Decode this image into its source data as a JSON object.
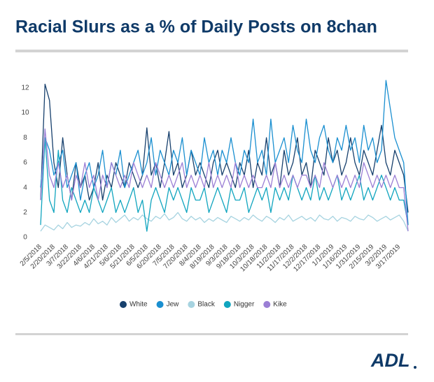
{
  "chart_data": {
    "type": "line",
    "title": "Racial Slurs as a % of Daily Posts on 8chan",
    "categories": [
      "2/5/2018",
      null,
      null,
      "2/20/2018",
      null,
      null,
      "3/7/2018",
      null,
      null,
      "3/22/2018",
      null,
      null,
      "4/6/2018",
      null,
      null,
      "4/21/2018",
      null,
      null,
      "5/6/2018",
      null,
      null,
      "5/21/2018",
      null,
      null,
      "6/5/2018",
      null,
      null,
      "6/20/2018",
      null,
      null,
      "7/5/2018",
      null,
      null,
      "7/20/2018",
      null,
      null,
      "8/4/2018",
      null,
      null,
      "8/19/2018",
      null,
      null,
      "9/3/2018",
      null,
      null,
      "9/18/2018",
      null,
      null,
      "10/3/2018",
      null,
      null,
      "10/18/2018",
      null,
      null,
      "11/2/2018",
      null,
      null,
      "11/17/2018",
      null,
      null,
      "12/2/2018",
      null,
      null,
      "12/17/2018",
      null,
      null,
      "1/1/2019",
      null,
      null,
      "1/16/2019",
      null,
      null,
      "1/31/2019",
      null,
      null,
      "2/15/2019",
      null,
      null,
      "3/2/2019",
      null,
      null,
      "3/17/2019",
      null,
      null
    ],
    "series": [
      {
        "name": "White",
        "color": "#17406d",
        "values": [
          3,
          12.3,
          11,
          6,
          4,
          8,
          5,
          3,
          6,
          4,
          5,
          3,
          4,
          6,
          3,
          5,
          4,
          6,
          5,
          4,
          6,
          5,
          4,
          5,
          8.8,
          5,
          6,
          4,
          6,
          8.5,
          5,
          6,
          4,
          5,
          7,
          5,
          6,
          5,
          4,
          6,
          7,
          5,
          6,
          5,
          4,
          6,
          5,
          7,
          4,
          6,
          5,
          8,
          5,
          6,
          4,
          7,
          5,
          6,
          8,
          5,
          6,
          4,
          7,
          6,
          5,
          8,
          6,
          7,
          5,
          6,
          8,
          6,
          5,
          7,
          6,
          5,
          7,
          9,
          6,
          5,
          7,
          6,
          5,
          2
        ]
      },
      {
        "name": "Jew",
        "color": "#1a8fd0",
        "values": [
          4,
          8,
          7,
          5,
          6,
          7,
          4,
          5,
          6,
          3,
          5,
          6,
          4,
          5,
          7,
          4,
          6,
          5,
          7,
          4,
          5,
          6,
          7,
          5,
          6,
          8,
          5,
          7,
          6,
          5,
          7,
          6,
          8,
          5,
          7,
          6,
          5,
          8,
          6,
          7,
          5,
          7,
          6,
          8,
          6,
          5,
          7,
          6,
          9.5,
          6,
          7,
          5,
          9.5,
          6,
          7,
          8,
          6,
          9,
          7,
          6,
          9.5,
          7,
          6,
          8,
          9,
          7,
          6,
          8,
          7,
          9,
          7,
          8,
          6,
          9,
          7,
          8,
          6,
          7,
          12.6,
          10.3,
          8,
          7,
          6,
          1
        ]
      },
      {
        "name": "Black",
        "color": "#a6d3e0",
        "values": [
          0.5,
          1,
          0.8,
          0.6,
          1,
          0.7,
          1.2,
          0.8,
          1,
          0.9,
          1.2,
          1,
          1.5,
          1.1,
          1.3,
          1,
          1.6,
          1.2,
          1.5,
          1.8,
          1.3,
          1.6,
          1.4,
          1.8,
          1.5,
          1.3,
          1.7,
          1.5,
          1.9,
          1.4,
          1.6,
          2,
          1.5,
          1.3,
          1.7,
          1.4,
          1.6,
          1.2,
          1.5,
          1.3,
          1.6,
          1.4,
          1.2,
          1.7,
          1.5,
          1.3,
          1.6,
          1.4,
          1.8,
          1.5,
          1.3,
          1.7,
          1.5,
          1.2,
          1.6,
          1.4,
          1.8,
          1.3,
          1.5,
          1.7,
          1.4,
          1.6,
          1.3,
          1.8,
          1.5,
          1.4,
          1.7,
          1.3,
          1.6,
          1.5,
          1.3,
          1.7,
          1.5,
          1.4,
          1.8,
          1.6,
          1.3,
          1.5,
          1.7,
          1.4,
          1.6,
          1.8,
          1.3,
          0.5
        ]
      },
      {
        "name": "Nigger",
        "color": "#11a5bf",
        "values": [
          1,
          8,
          3,
          2,
          7,
          3,
          2,
          4,
          3,
          2,
          3,
          2,
          4,
          3,
          2,
          3,
          4,
          2,
          3,
          2,
          3,
          4,
          2,
          3,
          0.5,
          3,
          4,
          3,
          2,
          4,
          3,
          4,
          3,
          2,
          4,
          3,
          3,
          4,
          2,
          3,
          4,
          3,
          2,
          4,
          3,
          3,
          4,
          2,
          3,
          4,
          3,
          4,
          2,
          4,
          3,
          4,
          3,
          5,
          4,
          3,
          4,
          3,
          5,
          3,
          4,
          3,
          4,
          5,
          3,
          4,
          3,
          4,
          5,
          3,
          4,
          3,
          4,
          5,
          4,
          3,
          4,
          3,
          3,
          1
        ]
      },
      {
        "name": "Kike",
        "color": "#9b7fd5",
        "values": [
          3,
          8.7,
          5,
          4,
          6,
          4,
          5,
          3,
          5,
          4,
          6,
          4,
          5,
          3,
          5,
          4,
          6,
          5,
          4,
          5,
          4,
          6,
          5,
          4,
          5,
          4,
          6,
          5,
          4,
          5,
          4,
          5,
          6,
          4,
          5,
          4,
          5,
          4,
          6,
          4,
          5,
          4,
          5,
          4,
          6,
          4,
          5,
          4,
          5,
          4,
          4,
          5,
          4,
          6,
          4,
          5,
          4,
          5,
          4,
          5,
          5,
          4,
          5,
          4,
          6,
          5,
          4,
          5,
          4,
          5,
          4,
          5,
          4,
          6,
          5,
          4,
          5,
          4,
          5,
          4,
          5,
          4,
          4,
          0.5
        ]
      }
    ],
    "ylim": [
      0,
      13
    ],
    "yticks": [
      0,
      2,
      4,
      6,
      8,
      10,
      12
    ],
    "grid": false,
    "legend": "bottom"
  },
  "logo": "ADL"
}
